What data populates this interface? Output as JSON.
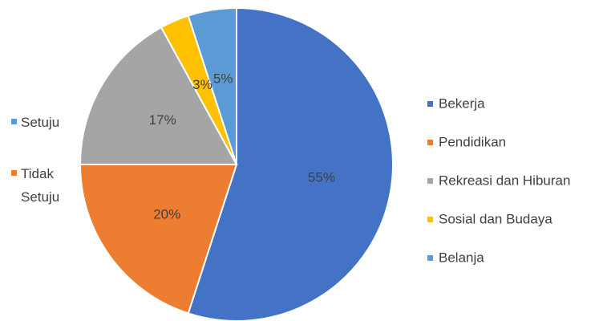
{
  "chart_data": {
    "type": "pie",
    "categories": [
      "Bekerja",
      "Pendidikan",
      "Rekreasi dan Hiburan",
      "Sosial dan Budaya",
      "Belanja"
    ],
    "values": [
      55,
      20,
      17,
      3,
      5
    ],
    "value_labels": [
      "55%",
      "20%",
      "17%",
      "3%",
      "5%"
    ],
    "colors": [
      "#4472c4",
      "#ed7d31",
      "#a5a5a5",
      "#ffc000",
      "#5b9bd5"
    ],
    "legend": "right",
    "legend2": {
      "labels": [
        "Setuju",
        "Tidak Setuju"
      ],
      "colors": [
        "#5b9bd5",
        "#ed7d31"
      ]
    }
  }
}
